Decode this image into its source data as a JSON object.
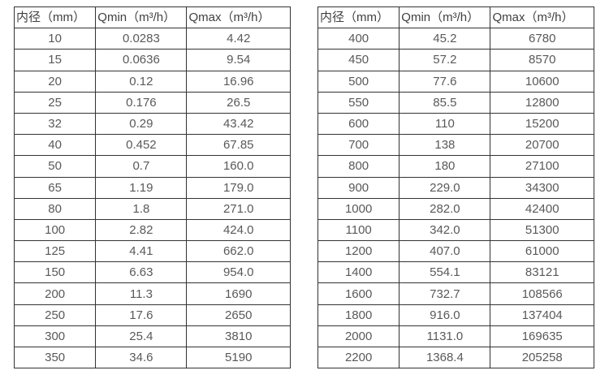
{
  "accent_colors": {
    "border": "#333333",
    "header_text": "#404040",
    "cell_text": "#595959",
    "background": "#ffffff"
  },
  "tables": [
    {
      "name": "small-diameter-spec",
      "headers": [
        "内径（mm）",
        "Qmin（m³/h）",
        "Qmax（m³/h）"
      ],
      "rows": [
        [
          "10",
          "0.0283",
          "4.42"
        ],
        [
          "15",
          "0.0636",
          "9.54"
        ],
        [
          "20",
          "0.12",
          "16.96"
        ],
        [
          "25",
          "0.176",
          "26.5"
        ],
        [
          "32",
          "0.29",
          "43.42"
        ],
        [
          "40",
          "0.452",
          "67.85"
        ],
        [
          "50",
          "0.7",
          "160.0"
        ],
        [
          "65",
          "1.19",
          "179.0"
        ],
        [
          "80",
          "1.8",
          "271.0"
        ],
        [
          "100",
          "2.82",
          "424.0"
        ],
        [
          "125",
          "4.41",
          "662.0"
        ],
        [
          "150",
          "6.63",
          "954.0"
        ],
        [
          "200",
          "11.3",
          "1690"
        ],
        [
          "250",
          "17.6",
          "2650"
        ],
        [
          "300",
          "25.4",
          "3810"
        ],
        [
          "350",
          "34.6",
          "5190"
        ]
      ]
    },
    {
      "name": "large-diameter-spec",
      "headers": [
        "内径（mm）",
        "Qmin（m³/h）",
        "Qmax（m³/h）"
      ],
      "rows": [
        [
          "400",
          "45.2",
          "6780"
        ],
        [
          "450",
          "57.2",
          "8570"
        ],
        [
          "500",
          "77.6",
          "10600"
        ],
        [
          "550",
          "85.5",
          "12800"
        ],
        [
          "600",
          "110",
          "15200"
        ],
        [
          "700",
          "138",
          "20700"
        ],
        [
          "800",
          "180",
          "27100"
        ],
        [
          "900",
          "229.0",
          "34300"
        ],
        [
          "1000",
          "282.0",
          "42400"
        ],
        [
          "1100",
          "342.0",
          "51300"
        ],
        [
          "1200",
          "407.0",
          "61000"
        ],
        [
          "1400",
          "554.1",
          "83121"
        ],
        [
          "1600",
          "732.7",
          "108566"
        ],
        [
          "1800",
          "916.0",
          "137404"
        ],
        [
          "2000",
          "1131.0",
          "169635"
        ],
        [
          "2200",
          "1368.4",
          "205258"
        ]
      ]
    }
  ]
}
